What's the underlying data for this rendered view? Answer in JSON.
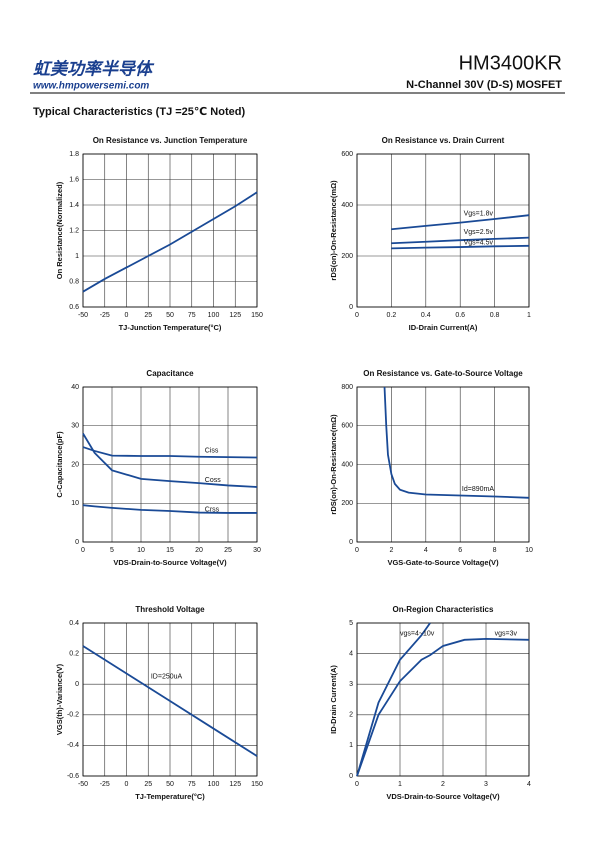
{
  "header": {
    "company": "虹美功率半导体",
    "website": "www.hmpowersemi.com",
    "part_number": "HM3400KR",
    "description": "N-Channel 30V (D-S) MOSFET",
    "section_title": "Typical Characteristics (TJ =25℃ Noted)"
  },
  "chart_data": [
    {
      "type": "line",
      "title": "On Resistance vs. Junction Temperature",
      "xlabel": "TJ-Junction Temperature(°C)",
      "ylabel": "On Resistance(Normalized)",
      "x": [
        -50,
        -25,
        0,
        25,
        50,
        75,
        100,
        125,
        150
      ],
      "values": [
        0.72,
        0.82,
        0.91,
        1.0,
        1.09,
        1.19,
        1.29,
        1.39,
        1.5
      ],
      "color": "#1a4a96",
      "xlim": [
        -50,
        150
      ],
      "ylim": [
        0.6,
        1.8
      ],
      "xticks": [
        -50,
        -25,
        0,
        25,
        50,
        75,
        100,
        125,
        150
      ],
      "yticks": [
        0.6,
        0.8,
        1,
        1.2,
        1.4,
        1.6,
        1.8
      ],
      "grid": true
    },
    {
      "type": "line",
      "title": "On Resistance vs. Drain Current",
      "xlabel": "ID-Drain Current(A)",
      "ylabel": "rDS(on)-On-Resistance(mΩ)",
      "x": [
        0.2,
        0.4,
        0.6,
        0.8,
        1
      ],
      "series": [
        {
          "name": "Vgs=1.8v",
          "color": "#1a4a96",
          "values": [
            305,
            318,
            331,
            345,
            360
          ]
        },
        {
          "name": "Vgs=2.5v",
          "color": "#1a4a96",
          "values": [
            250,
            256,
            262,
            267,
            272
          ]
        },
        {
          "name": "Vgs=4.5v",
          "color": "#1a4a96",
          "values": [
            230,
            233,
            235,
            238,
            240
          ]
        }
      ],
      "xlim": [
        0,
        1
      ],
      "ylim": [
        0,
        600
      ],
      "xticks": [
        0,
        0.2,
        0.4,
        0.6,
        0.8,
        1
      ],
      "yticks": [
        0,
        200,
        400,
        600
      ],
      "grid": true
    },
    {
      "type": "line",
      "title": "Capacitance",
      "xlabel": "VDS-Drain-to-Source Voltage(V)",
      "ylabel": "C-Capacitance(pF)",
      "x": [
        0,
        2,
        5,
        10,
        15,
        20,
        25,
        30
      ],
      "series": [
        {
          "name": "Ciss",
          "color": "#1a4a96",
          "values": [
            24.5,
            23.5,
            22.3,
            22.2,
            22.2,
            22,
            21.9,
            21.8
          ]
        },
        {
          "name": "Coss",
          "color": "#1a4a96",
          "values": [
            28,
            23,
            18.5,
            16.3,
            15.7,
            15.2,
            14.6,
            14.2
          ]
        },
        {
          "name": "Crss",
          "color": "#1a4a96",
          "values": [
            9.5,
            9.2,
            8.8,
            8.3,
            8,
            7.6,
            7.5,
            7.5
          ]
        }
      ],
      "xlim": [
        0,
        30
      ],
      "ylim": [
        0,
        40
      ],
      "xticks": [
        0,
        5,
        10,
        15,
        20,
        25,
        30
      ],
      "yticks": [
        0,
        10,
        20,
        30,
        40
      ],
      "grid": true
    },
    {
      "type": "line",
      "title": "On Resistance vs. Gate-to-Source Voltage",
      "xlabel": "VGS-Gate-to-Source Voltage(V)",
      "ylabel": "rDS(on)-On-Resistance(mΩ)",
      "annotation": "Id=890mA",
      "x": [
        1.6,
        1.7,
        1.8,
        2,
        2.2,
        2.5,
        3,
        4,
        6,
        8,
        10
      ],
      "values": [
        800,
        600,
        450,
        350,
        300,
        270,
        255,
        245,
        240,
        235,
        228
      ],
      "color": "#1a4a96",
      "xlim": [
        0,
        10
      ],
      "ylim": [
        0,
        800
      ],
      "xticks": [
        0,
        2,
        4,
        6,
        8,
        10
      ],
      "yticks": [
        0,
        200,
        400,
        600,
        800
      ],
      "grid": true
    },
    {
      "type": "line",
      "title": "Threshold Voltage",
      "xlabel": "TJ-Temperature(°C)",
      "ylabel": "VGS(th)-Variance(V)",
      "annotation": "ID=250uA",
      "x": [
        -50,
        0,
        50,
        100,
        150
      ],
      "values": [
        0.25,
        0.07,
        -0.11,
        -0.29,
        -0.47
      ],
      "color": "#1a4a96",
      "xlim": [
        -50,
        150
      ],
      "ylim": [
        -0.6,
        0.4
      ],
      "xticks": [
        -50,
        -25,
        0,
        25,
        50,
        75,
        100,
        125,
        150
      ],
      "yticks": [
        -0.6,
        -0.4,
        -0.2,
        0,
        0.2,
        0.4
      ],
      "grid": true
    },
    {
      "type": "line",
      "title": "On-Region Characteristics",
      "xlabel": "VDS-Drain-to-Source Voltage(V)",
      "ylabel": "ID-Drain Current(A)",
      "x": [
        0,
        0.5,
        1,
        1.5,
        1.7,
        2,
        2.5,
        3,
        4
      ],
      "series": [
        {
          "name": "vgs=4~10v",
          "color": "#1a4a96",
          "values": [
            0,
            2.4,
            3.8,
            4.6,
            5,
            null,
            null,
            null,
            null
          ]
        },
        {
          "name": "vgs=3v",
          "color": "#1a4a96",
          "values": [
            0,
            2,
            3.1,
            3.8,
            3.95,
            4.25,
            4.45,
            4.48,
            4.45
          ]
        }
      ],
      "xlim": [
        0,
        4
      ],
      "ylim": [
        0,
        5
      ],
      "xticks": [
        0,
        1,
        2,
        3,
        4
      ],
      "yticks": [
        0,
        1,
        2,
        3,
        4,
        5
      ],
      "grid": true
    }
  ]
}
